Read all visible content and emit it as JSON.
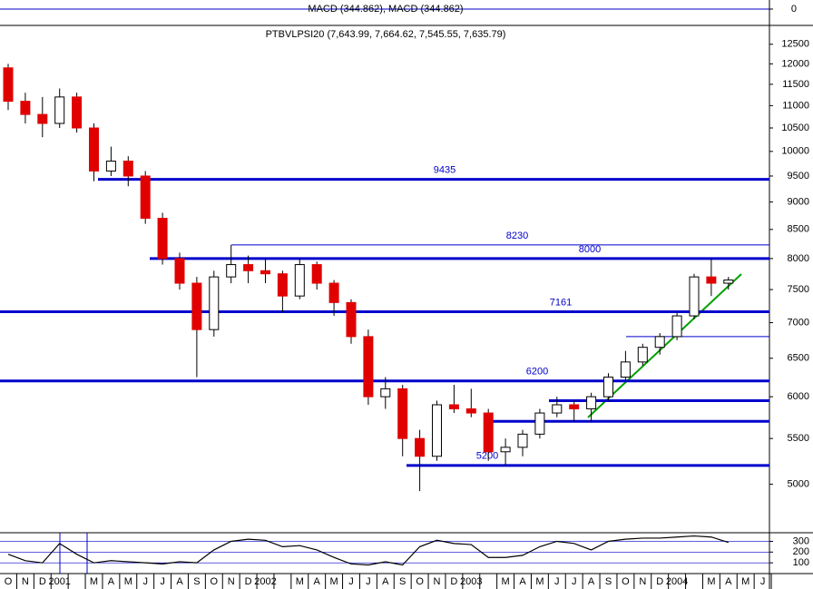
{
  "chart_data": {
    "type": "candlestick",
    "title": "PTBVLPSI20 (7,643.99, 7,664.62, 7,545.55, 7,635.79)",
    "indicator_title": "MACD (344.862), MACD (344.862)",
    "indicator_ticks": [
      0
    ],
    "categories": [
      "O",
      "N",
      "D",
      "2001",
      null,
      "M",
      "A",
      "M",
      "J",
      "J",
      "A",
      "S",
      "O",
      "N",
      "D",
      "2002",
      null,
      "M",
      "A",
      "M",
      "J",
      "J",
      "A",
      "S",
      "O",
      "N",
      "D",
      "2003",
      null,
      "M",
      "A",
      "M",
      "J",
      "J",
      "A",
      "S",
      "O",
      "N",
      "D",
      "2004",
      null,
      "M",
      "A",
      "M",
      "J"
    ],
    "open": [
      11900,
      11100,
      10800,
      10600,
      11200,
      10500,
      9600,
      9800,
      9500,
      8700,
      8000,
      7600,
      6900,
      7700,
      7900,
      7800,
      7750,
      7400,
      7900,
      7600,
      7300,
      6800,
      6000,
      6100,
      5500,
      5300,
      5900,
      5850,
      5800,
      5350,
      5400,
      5550,
      5800,
      5900,
      5850,
      6000,
      6250,
      6450,
      6650,
      6800,
      7100,
      7700,
      7600,
      null,
      null
    ],
    "high": [
      12000,
      11300,
      11200,
      11400,
      11300,
      10600,
      10100,
      9900,
      9600,
      8800,
      8100,
      7700,
      7800,
      8230,
      8050,
      8000,
      7800,
      8000,
      7950,
      7650,
      7350,
      6900,
      6250,
      6150,
      5600,
      5950,
      6150,
      6100,
      5850,
      5500,
      5600,
      5850,
      6000,
      5950,
      6050,
      6300,
      6600,
      6700,
      6850,
      7150,
      7750,
      8000,
      7700,
      null,
      null
    ],
    "low": [
      10900,
      10600,
      10300,
      10500,
      10400,
      9400,
      9500,
      9300,
      8600,
      7900,
      7500,
      6250,
      6800,
      7600,
      7600,
      7600,
      7150,
      7350,
      7500,
      7100,
      6700,
      5900,
      5850,
      5300,
      4930,
      5250,
      5800,
      5750,
      5250,
      5200,
      5300,
      5500,
      5750,
      5700,
      5700,
      5950,
      6200,
      6400,
      6550,
      6750,
      7050,
      7400,
      7500,
      null,
      null
    ],
    "close": [
      11100,
      10800,
      10600,
      11200,
      10500,
      9600,
      9800,
      9500,
      8700,
      8000,
      7600,
      6900,
      7700,
      7900,
      7800,
      7750,
      7400,
      7900,
      7600,
      7300,
      6800,
      6000,
      6100,
      5500,
      5300,
      5900,
      5850,
      5800,
      5350,
      5400,
      5550,
      5800,
      5900,
      5850,
      6000,
      6250,
      6450,
      6650,
      6800,
      7100,
      7700,
      7600,
      7650,
      null,
      null
    ],
    "up_color": "#ffffff",
    "down_color": "#e00000",
    "log_scale": true,
    "ylim": [
      4520,
      13000
    ],
    "yticks": [
      5000,
      5500,
      6000,
      6500,
      7000,
      7500,
      8000,
      8500,
      9000,
      9500,
      10000,
      10500,
      11000,
      11500,
      12000,
      12500
    ],
    "levels": [
      9435,
      8230,
      8000,
      7161,
      6200,
      5200
    ],
    "unlabeled_levels": [
      5950,
      5700,
      6800
    ],
    "level_color": "#0000cc",
    "oscillator": {
      "values": [
        180,
        120,
        100,
        280,
        180,
        100,
        120,
        110,
        100,
        90,
        110,
        100,
        220,
        300,
        320,
        310,
        250,
        260,
        220,
        150,
        90,
        80,
        110,
        80,
        250,
        310,
        280,
        270,
        150,
        150,
        170,
        250,
        300,
        280,
        220,
        300,
        320,
        330,
        330,
        340,
        350,
        340,
        290,
        null,
        null
      ],
      "ylim": [
        0,
        380
      ],
      "yticks": [
        100,
        200,
        300
      ]
    }
  }
}
